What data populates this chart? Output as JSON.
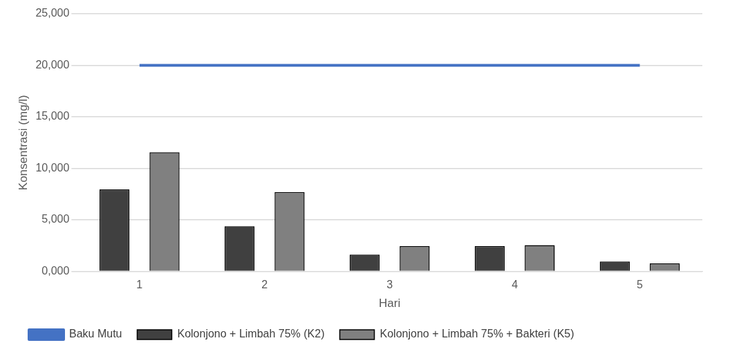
{
  "chart_data": {
    "type": "bar",
    "xlabel": "Hari",
    "ylabel": "Konsentrasi (mg/l)",
    "categories": [
      "1",
      "2",
      "3",
      "4",
      "5"
    ],
    "series": [
      {
        "name": "Kolonjono + Limbah 75% (K2)",
        "color": "#404040",
        "values": [
          7950,
          4370,
          1620,
          2440,
          950
        ]
      },
      {
        "name": "Kolonjono + Limbah 75% + Bakteri (K5)",
        "color": "#808080",
        "values": [
          11560,
          7700,
          2440,
          2540,
          760
        ]
      },
      {
        "name": "Baku Mutu",
        "type": "line",
        "color": "#4472c4",
        "values": [
          20000,
          20000,
          20000,
          20000,
          20000
        ]
      }
    ],
    "ylim": [
      0,
      25000
    ],
    "yticks": [
      {
        "value": 0,
        "label": "0,000"
      },
      {
        "value": 5000,
        "label": "5,000"
      },
      {
        "value": 10000,
        "label": "10,000"
      },
      {
        "value": 15000,
        "label": "15,000"
      },
      {
        "value": 20000,
        "label": "20,000"
      },
      {
        "value": 25000,
        "label": "25,000"
      }
    ],
    "grid": "y",
    "legend": "bottom",
    "marker": "none"
  }
}
